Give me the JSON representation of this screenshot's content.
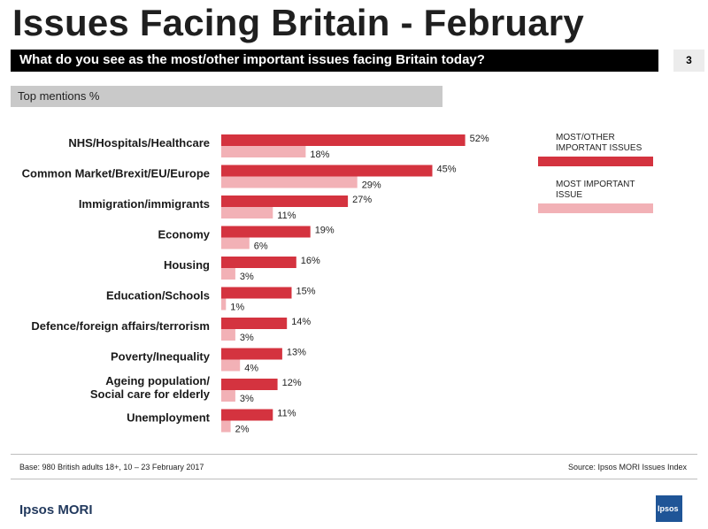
{
  "title": "Issues Facing Britain - February",
  "question": "What do you see as the most/other important issues facing Britain today?",
  "page_number": "3",
  "subhead": "Top mentions %",
  "legend": {
    "most_other": "MOST/OTHER\nIMPORTANT ISSUES",
    "most": "MOST IMPORTANT\nISSUE"
  },
  "colors": {
    "most_other": "#d4333f",
    "most": "#f2b1b6",
    "brand": "#233a5e",
    "logo": "#1f5597"
  },
  "footer": {
    "base": "Base: 980 British adults 18+, 10 – 23 February 2017",
    "source": "Source: Ipsos MORI Issues Index"
  },
  "brand": "Ipsos MORI",
  "logo_text": "Ipsos",
  "chart_data": {
    "type": "bar",
    "orientation": "horizontal",
    "categories": [
      "NHS/Hospitals/Healthcare",
      "Common Market/Brexit/EU/Europe",
      "Immigration/immigrants",
      "Economy",
      "Housing",
      "Education/Schools",
      "Defence/foreign affairs/terrorism",
      "Poverty/Inequality",
      "Ageing population/\nSocial care for elderly",
      "Unemployment"
    ],
    "series": [
      {
        "name": "MOST/OTHER IMPORTANT ISSUES",
        "values": [
          52,
          45,
          27,
          19,
          16,
          15,
          14,
          13,
          12,
          11
        ]
      },
      {
        "name": "MOST IMPORTANT ISSUE",
        "values": [
          18,
          29,
          11,
          6,
          3,
          1,
          3,
          4,
          3,
          2
        ]
      }
    ],
    "value_suffix": "%",
    "xlim": [
      0,
      60
    ],
    "grid": false,
    "legend_position": "right"
  }
}
